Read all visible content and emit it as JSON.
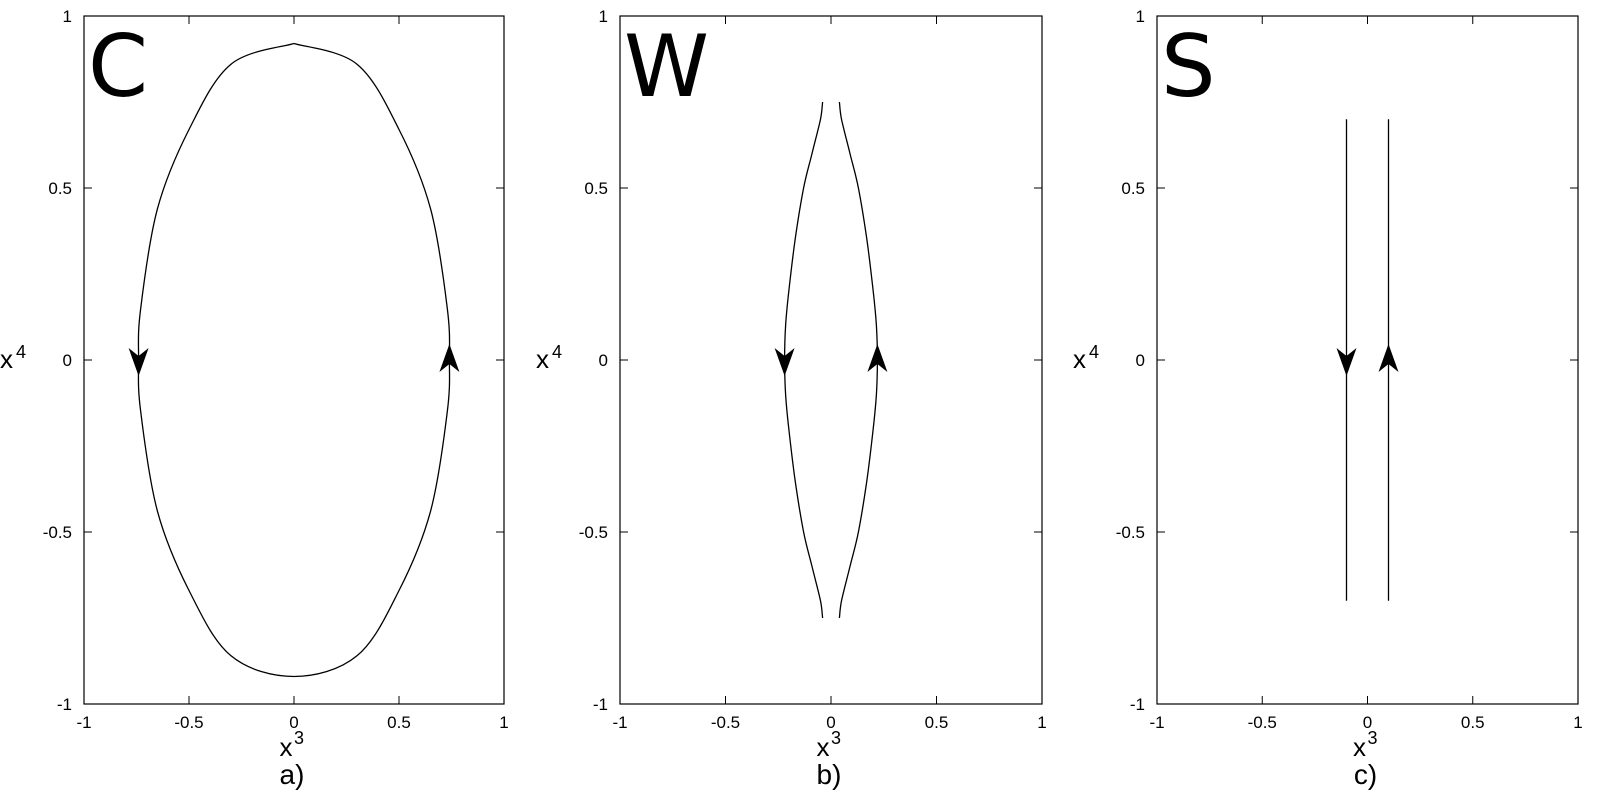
{
  "figure": {
    "background": "#ffffff",
    "line_color": "#000000"
  },
  "chart_data": [
    {
      "type": "line",
      "panel_letter": "C",
      "caption": "a)",
      "xlabel": "x",
      "xlabel_sup": "3",
      "ylabel": "x",
      "ylabel_sup": "4",
      "xlim": [
        -1,
        1
      ],
      "ylim": [
        -1,
        1
      ],
      "xticks": [
        "-1",
        "-0.5",
        "0",
        "0.5",
        "1"
      ],
      "yticks": [
        "-1",
        "-0.5",
        "0",
        "0.5",
        "1"
      ],
      "grid": false,
      "series": [
        {
          "shape": "ellipse",
          "x": [
            0,
            0.3,
            0.5,
            0.65,
            0.73,
            0.74,
            0.73,
            0.65,
            0.5,
            0.3,
            0,
            -0.3,
            -0.5,
            -0.65,
            -0.73,
            -0.74,
            -0.73,
            -0.65,
            -0.5,
            -0.3,
            0
          ],
          "y": [
            0.92,
            0.86,
            0.67,
            0.44,
            0.15,
            0,
            -0.15,
            -0.44,
            -0.67,
            -0.86,
            -0.92,
            -0.86,
            -0.67,
            -0.44,
            -0.15,
            0,
            0.15,
            0.44,
            0.67,
            0.86,
            0.92
          ]
        }
      ],
      "arrows": [
        {
          "x": -0.74,
          "y": 0,
          "direction": "down"
        },
        {
          "x": 0.74,
          "y": 0,
          "direction": "up"
        }
      ]
    },
    {
      "type": "line",
      "panel_letter": "W",
      "caption": "b)",
      "xlabel": "x",
      "xlabel_sup": "3",
      "ylabel": "x",
      "ylabel_sup": "4",
      "xlim": [
        -1,
        1
      ],
      "ylim": [
        -1,
        1
      ],
      "xticks": [
        "-1",
        "-0.5",
        "0",
        "0.5",
        "1"
      ],
      "yticks": [
        "-1",
        "-0.5",
        "0",
        "0.5",
        "1"
      ],
      "grid": false,
      "series": [
        {
          "shape": "left-branch",
          "x": [
            -0.04,
            -0.05,
            -0.09,
            -0.13,
            -0.17,
            -0.2,
            -0.215,
            -0.22,
            -0.215,
            -0.2,
            -0.17,
            -0.13,
            -0.09,
            -0.05,
            -0.04
          ],
          "y": [
            0.75,
            0.7,
            0.6,
            0.5,
            0.35,
            0.2,
            0.1,
            0,
            -0.1,
            -0.2,
            -0.35,
            -0.5,
            -0.6,
            -0.7,
            -0.75
          ]
        },
        {
          "shape": "right-branch",
          "x": [
            0.04,
            0.05,
            0.09,
            0.13,
            0.17,
            0.2,
            0.215,
            0.22,
            0.215,
            0.2,
            0.17,
            0.13,
            0.09,
            0.05,
            0.04
          ],
          "y": [
            0.75,
            0.7,
            0.6,
            0.5,
            0.35,
            0.2,
            0.1,
            0,
            -0.1,
            -0.2,
            -0.35,
            -0.5,
            -0.6,
            -0.7,
            -0.75
          ]
        }
      ],
      "arrows": [
        {
          "x": -0.22,
          "y": 0,
          "direction": "down"
        },
        {
          "x": 0.22,
          "y": 0,
          "direction": "up"
        }
      ]
    },
    {
      "type": "line",
      "panel_letter": "S",
      "caption": "c)",
      "xlabel": "x",
      "xlabel_sup": "3",
      "ylabel": "x",
      "ylabel_sup": "4",
      "xlim": [
        -1,
        1
      ],
      "ylim": [
        -1,
        1
      ],
      "xticks": [
        "-1",
        "-0.5",
        "0",
        "0.5",
        "1"
      ],
      "yticks": [
        "-1",
        "-0.5",
        "0",
        "0.5",
        "1"
      ],
      "grid": false,
      "series": [
        {
          "shape": "left-line",
          "x": [
            -0.1,
            -0.1
          ],
          "y": [
            0.7,
            -0.7
          ]
        },
        {
          "shape": "right-line",
          "x": [
            0.1,
            0.1
          ],
          "y": [
            0.7,
            -0.7
          ]
        }
      ],
      "arrows": [
        {
          "x": -0.1,
          "y": 0,
          "direction": "down"
        },
        {
          "x": 0.1,
          "y": 0,
          "direction": "up"
        }
      ]
    }
  ]
}
